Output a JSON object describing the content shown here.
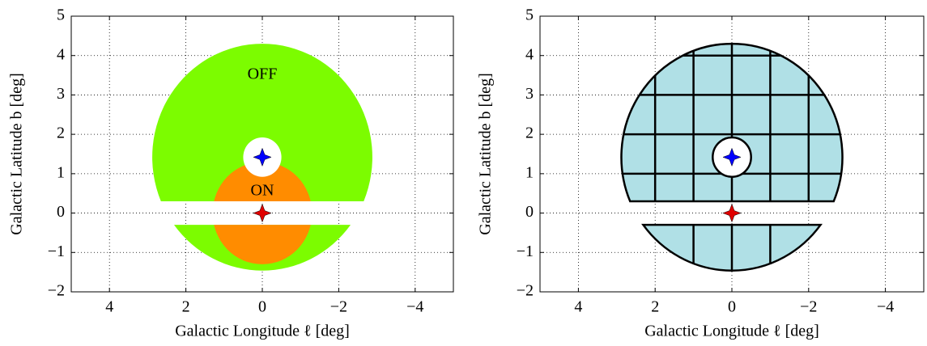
{
  "chart_data": [
    {
      "type": "region_map",
      "xlabel": "Galactic Longitude ℓ [deg]",
      "ylabel": "Galactic Latitude b [deg]",
      "xlim": [
        5,
        -5
      ],
      "ylim": [
        -2,
        5
      ],
      "xticks": [
        4,
        2,
        0,
        {
          "value": -2,
          "label": "−2"
        },
        {
          "value": -4,
          "label": "−4"
        }
      ],
      "yticks": [
        {
          "value": -2,
          "label": "−2"
        },
        {
          "value": -1,
          "label": "−1"
        },
        0,
        1,
        2,
        3,
        4,
        5
      ],
      "grid": true,
      "off_region": {
        "center": [
          0,
          1.42
        ],
        "radius": 2.88,
        "color": "#7cfc00"
      },
      "exclusion_band": [
        -0.3,
        0.3
      ],
      "exclusion_circle": {
        "center": [
          0,
          1.42
        ],
        "radius": 0.5
      },
      "on_region": {
        "center": [
          0,
          0
        ],
        "radius": 1.3,
        "color": "#ff8c00"
      },
      "annotations": [
        "OFF",
        "ON"
      ],
      "markers": [
        {
          "x": 0,
          "y": 1.42,
          "color": "#0000ff"
        },
        {
          "x": 0,
          "y": 0,
          "color": "#e00000"
        }
      ]
    },
    {
      "type": "region_map",
      "xlabel": "Galactic Longitude ℓ [deg]",
      "ylabel": "Galactic Latitude b [deg]",
      "xlim": [
        5,
        -5
      ],
      "ylim": [
        -2,
        5
      ],
      "xticks": [
        4,
        2,
        0,
        {
          "value": -2,
          "label": "−2"
        },
        {
          "value": -4,
          "label": "−4"
        }
      ],
      "yticks": [
        {
          "value": -2,
          "label": "−2"
        },
        {
          "value": -1,
          "label": "−1"
        },
        0,
        1,
        2,
        3,
        4,
        5
      ],
      "grid": true,
      "off_region": {
        "center": [
          0,
          1.42
        ],
        "radius": 2.88,
        "color": "#b0e0e6"
      },
      "exclusion_band": [
        -0.3,
        0.3
      ],
      "exclusion_circle": {
        "center": [
          0,
          1.42
        ],
        "radius": 0.5
      },
      "edge_color": "#000000",
      "tile_edges_x_upper": [
        2,
        1,
        0,
        -1,
        -2
      ],
      "tile_edges_x_lower": [
        1,
        0,
        -1
      ],
      "tile_edges_y": [
        1,
        2,
        3,
        4
      ],
      "markers": [
        {
          "x": 0,
          "y": 1.42,
          "color": "#0000ff"
        },
        {
          "x": 0,
          "y": 0,
          "color": "#e00000"
        }
      ]
    }
  ]
}
